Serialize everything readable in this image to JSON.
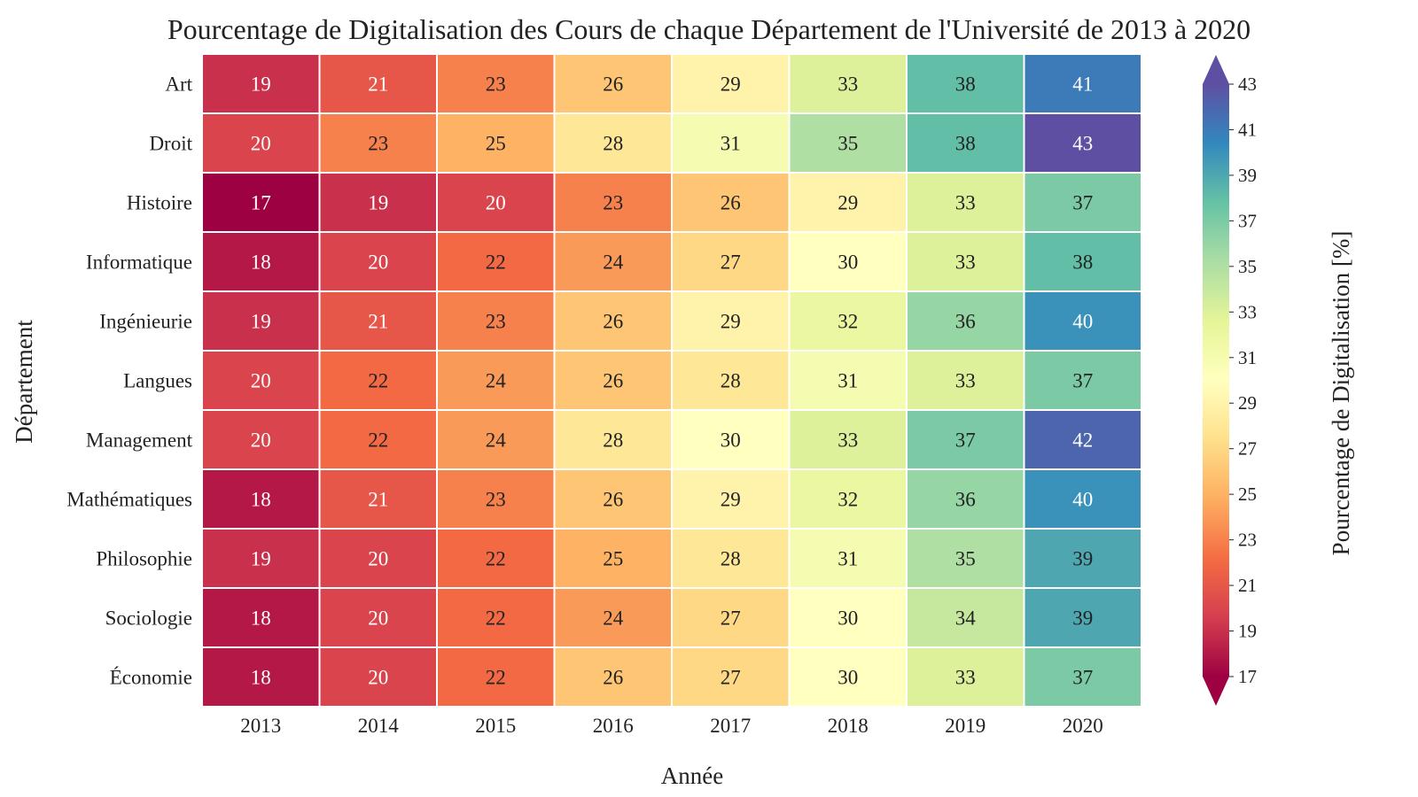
{
  "chart_data": {
    "type": "heatmap",
    "title": "Pourcentage de Digitalisation des Cours de chaque Département de l'Université de 2013 à 2020",
    "xlabel": "Année",
    "ylabel": "Département",
    "x": [
      "2013",
      "2014",
      "2015",
      "2016",
      "2017",
      "2018",
      "2019",
      "2020"
    ],
    "y": [
      "Art",
      "Droit",
      "Histoire",
      "Informatique",
      "Ingénieurie",
      "Langues",
      "Management",
      "Mathématiques",
      "Philosophie",
      "Sociologie",
      "Économie"
    ],
    "values": [
      [
        19,
        21,
        23,
        26,
        29,
        33,
        38,
        41
      ],
      [
        20,
        23,
        25,
        28,
        31,
        35,
        38,
        43
      ],
      [
        17,
        19,
        20,
        23,
        26,
        29,
        33,
        37
      ],
      [
        18,
        20,
        22,
        24,
        27,
        30,
        33,
        38
      ],
      [
        19,
        21,
        23,
        26,
        29,
        32,
        36,
        40
      ],
      [
        20,
        22,
        24,
        26,
        28,
        31,
        33,
        37
      ],
      [
        20,
        22,
        24,
        28,
        30,
        33,
        37,
        42
      ],
      [
        18,
        21,
        23,
        26,
        29,
        32,
        36,
        40
      ],
      [
        19,
        20,
        22,
        25,
        28,
        31,
        35,
        39
      ],
      [
        18,
        20,
        22,
        24,
        27,
        30,
        34,
        39
      ],
      [
        18,
        20,
        22,
        26,
        27,
        30,
        33,
        37
      ]
    ],
    "colorbar": {
      "label": "Pourcentage de Digitalisation [%]",
      "ticks": [
        17,
        19,
        21,
        23,
        25,
        27,
        29,
        31,
        33,
        35,
        37,
        39,
        41,
        43
      ],
      "range": [
        17,
        43
      ],
      "extend": "both",
      "colormap": "Spectral"
    },
    "annotations": "values shown in cells",
    "grid": false
  }
}
